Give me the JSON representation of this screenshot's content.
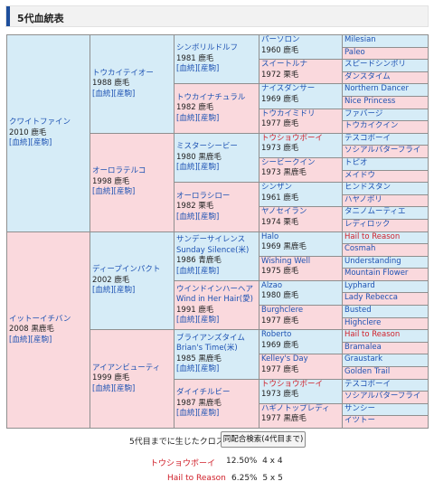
{
  "section_title": "5代血統表",
  "links": {
    "ketto": "[血統]",
    "sanku": "[産駒]"
  },
  "gen1": [
    {
      "name": "クワイトファイン",
      "info": "2010 鹿毛"
    },
    {
      "name": "イットーイチバン",
      "info": "2008 黒鹿毛"
    }
  ],
  "gen2": [
    {
      "name": "トウカイテイオー",
      "info": "1988 鹿毛"
    },
    {
      "name": "オーロラテルコ",
      "info": "1998 鹿毛"
    },
    {
      "name": "ディープインパクト",
      "info": "2002 鹿毛"
    },
    {
      "name": "アイアンビューティ",
      "info": "1999 鹿毛"
    }
  ],
  "gen3": [
    {
      "name": "シンボリルドルフ",
      "info": "1981 鹿毛"
    },
    {
      "name": "トウカイナチュラル",
      "info": "1982 鹿毛"
    },
    {
      "name": "ミスターシービー",
      "info": "1980 黒鹿毛"
    },
    {
      "name": "オーロラシロー",
      "info": "1982 栗毛"
    },
    {
      "name": "サンデーサイレンス",
      "alt": "Sunday Silence(米)",
      "info": "1986 青鹿毛"
    },
    {
      "name": "ウインドインハーヘア",
      "alt": "Wind in Her Hair(愛)",
      "info": "1991 鹿毛"
    },
    {
      "name": "ブライアンズタイム",
      "alt": "Brian's Time(米)",
      "info": "1985 黒鹿毛"
    },
    {
      "name": "ダイイチルビー",
      "info": "1987 黒鹿毛"
    }
  ],
  "gen4": [
    {
      "name": "パーソロン",
      "info": "1960 鹿毛"
    },
    {
      "name": "スイートルナ",
      "info": "1972 栗毛"
    },
    {
      "name": "ナイスダンサー",
      "info": "1969 鹿毛"
    },
    {
      "name": "トウカイミドリ",
      "info": "1977 鹿毛"
    },
    {
      "name": "トウショウボーイ",
      "info": "1973 鹿毛"
    },
    {
      "name": "シービークイン",
      "info": "1973 黒鹿毛"
    },
    {
      "name": "シンザン",
      "info": "1961 鹿毛"
    },
    {
      "name": "ヤノセイラン",
      "info": "1974 栗毛"
    },
    {
      "name": "Halo",
      "info": "1969 黒鹿毛"
    },
    {
      "name": "Wishing Well",
      "info": "1975 鹿毛"
    },
    {
      "name": "Alzao",
      "info": "1980 鹿毛"
    },
    {
      "name": "Burghclere",
      "info": "1977 鹿毛"
    },
    {
      "name": "Roberto",
      "info": "1969 鹿毛"
    },
    {
      "name": "Kelley's Day",
      "info": "1977 鹿毛"
    },
    {
      "name": "トウショウボーイ",
      "info": "1973 鹿毛"
    },
    {
      "name": "ハギノトップレディ",
      "info": "1977 黒鹿毛"
    }
  ],
  "gen5": [
    "Milesian",
    "Paleo",
    "スピードシンボリ",
    "ダンスタイム",
    "Northern Dancer",
    "Nice Princess",
    "ファバージ",
    "トウカイクイン",
    "テスコボーイ",
    "ソシアルバターフライ",
    "トピオ",
    "メイドウ",
    "ヒンドスタン",
    "ハヤノボリ",
    "タニノムーティエ",
    "レディロック",
    "Hail to Reason",
    "Cosmah",
    "Understanding",
    "Mountain Flower",
    "Lyphard",
    "Lady Rebecca",
    "Busted",
    "Highclere",
    "Hail to Reason",
    "Bramalea",
    "Graustark",
    "Golden Trail",
    "テスコボーイ",
    "ソシアルバターフライ",
    "サンシー",
    "イツトー"
  ],
  "crosses": {
    "label": "5代目までに生じたクロス",
    "button": "同配合検索(4代目まで)",
    "items": [
      {
        "name": "トウショウボーイ",
        "pct": "12.50%",
        "gen": "4 x 4"
      },
      {
        "name": "Hail to Reason",
        "pct": "6.25%",
        "gen": "5 x 5"
      }
    ]
  },
  "colors": {
    "male": "#d6ecf7",
    "female": "#fad9dd",
    "link": "#1d52b3",
    "cross": "#d0202a",
    "accent": "#1e4f9c"
  }
}
